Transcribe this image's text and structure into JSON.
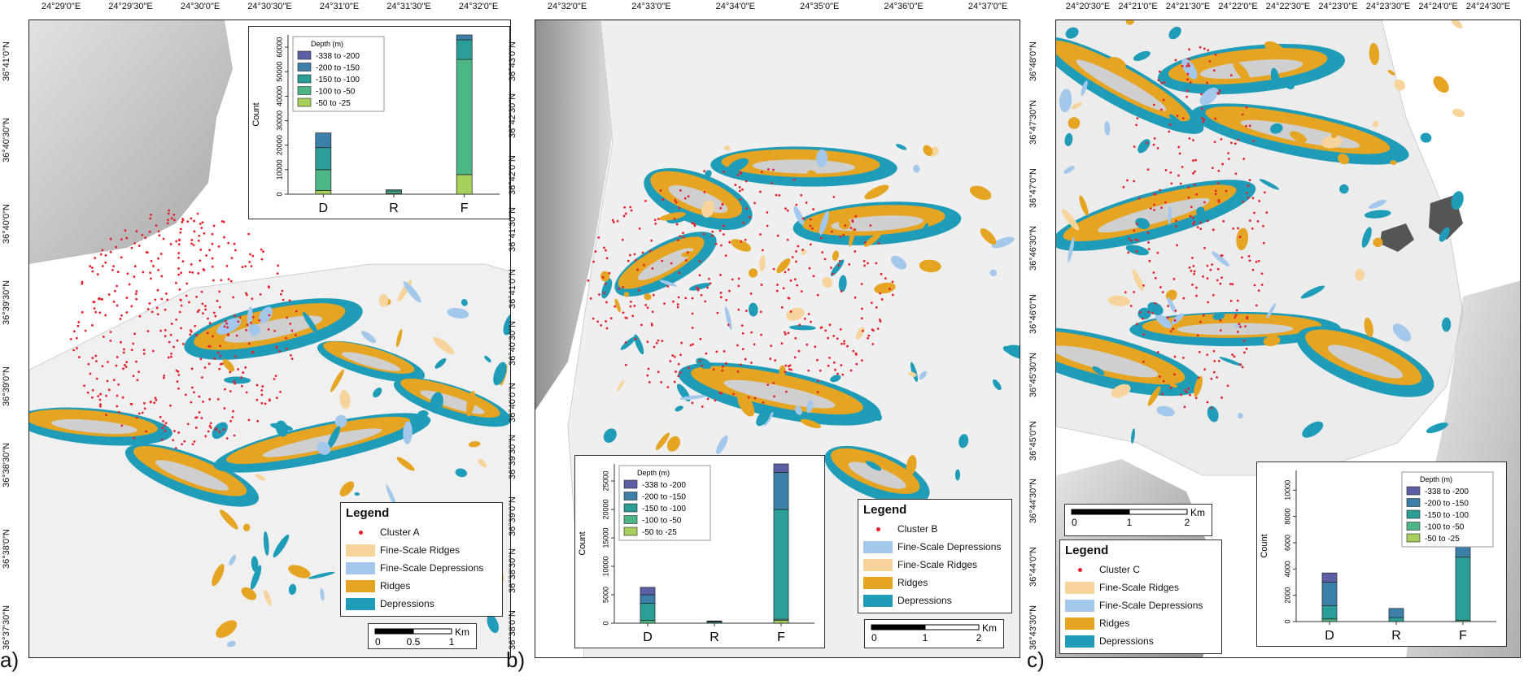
{
  "colors": {
    "depressions": "#1e9cb8",
    "ridges": "#e6a423",
    "fine_depressions": "#a4c8ec",
    "fine_ridges": "#f6d49c",
    "cluster": "#e8202a",
    "depth_bins": [
      "#5c5ea6",
      "#3c7fa8",
      "#2c9e98",
      "#4db685",
      "#a6cf5c"
    ]
  },
  "panels": [
    {
      "letter": "a)",
      "top_coords": [
        "24°29'0\"E",
        "24°29'30\"E",
        "24°30'0\"E",
        "24°30'30\"E",
        "24°31'0\"E",
        "24°31'30\"E",
        "24°32'0\"E"
      ],
      "left_coords": [
        "36°41'0\"N",
        "36°40'30\"N",
        "36°40'0\"N",
        "36°39'30\"N",
        "36°39'0\"N",
        "36°38'30\"N",
        "36°38'0\"N",
        "36°37'30\"N"
      ],
      "legend": {
        "title": "Legend",
        "items": [
          {
            "label": "Cluster A",
            "type": "dot",
            "color": "#e8202a"
          },
          {
            "label": "Fine-Scale Ridges",
            "type": "swatch",
            "color": "#f6d49c"
          },
          {
            "label": "Fine-Scale Depressions",
            "type": "swatch",
            "color": "#a4c8ec"
          },
          {
            "label": "Ridges",
            "type": "swatch",
            "color": "#e6a423"
          },
          {
            "label": "Depressions",
            "type": "swatch",
            "color": "#1e9cb8"
          }
        ]
      },
      "scalebar": {
        "unit": "Km",
        "ticks": [
          "0",
          "0.5",
          "1"
        ]
      }
    },
    {
      "letter": "b)",
      "top_coords": [
        "24°32'0\"E",
        "24°33'0\"E",
        "24°34'0\"E",
        "24°35'0\"E",
        "24°36'0\"E",
        "24°37'0\"E"
      ],
      "left_coords": [
        "36°43'0\"N",
        "36°42'30\"N",
        "36°42'0\"N",
        "36°41'30\"N",
        "36°41'0\"N",
        "36°40'30\"N",
        "36°40'0\"N",
        "36°39'30\"N",
        "36°39'0\"N",
        "36°38'30\"N",
        "36°38'0\"N"
      ],
      "legend": {
        "title": "Legend",
        "items": [
          {
            "label": "Cluster B",
            "type": "dot",
            "color": "#e8202a"
          },
          {
            "label": "Fine-Scale Depressions",
            "type": "swatch",
            "color": "#a4c8ec"
          },
          {
            "label": "Fine-Scale Ridges",
            "type": "swatch",
            "color": "#f6d49c"
          },
          {
            "label": "Ridges",
            "type": "swatch",
            "color": "#e6a423"
          },
          {
            "label": "Depressions",
            "type": "swatch",
            "color": "#1e9cb8"
          }
        ]
      },
      "scalebar": {
        "unit": "Km",
        "ticks": [
          "0",
          "1",
          "2"
        ]
      }
    },
    {
      "letter": "c)",
      "top_coords": [
        "24°20'30\"E",
        "24°21'0\"E",
        "24°21'30\"E",
        "24°22'0\"E",
        "24°22'30\"E",
        "24°23'0\"E",
        "24°23'30\"E",
        "24°24'0\"E",
        "24°24'30\"E"
      ],
      "left_coords": [
        "36°48'0\"N",
        "36°47'30\"N",
        "36°47'0\"N",
        "36°46'30\"N",
        "36°46'0\"N",
        "36°45'30\"N",
        "36°45'0\"N",
        "36°44'30\"N",
        "36°44'0\"N",
        "36°43'30\"N"
      ],
      "legend": {
        "title": "Legend",
        "items": [
          {
            "label": "Cluster C",
            "type": "dot",
            "color": "#e8202a"
          },
          {
            "label": "Fine-Scale Ridges",
            "type": "swatch",
            "color": "#f6d49c"
          },
          {
            "label": "Fine-Scale Depressions",
            "type": "swatch",
            "color": "#a4c8ec"
          },
          {
            "label": "Ridges",
            "type": "swatch",
            "color": "#e6a423"
          },
          {
            "label": "Depressions",
            "type": "swatch",
            "color": "#1e9cb8"
          }
        ]
      },
      "scalebar": {
        "unit": "Km",
        "ticks": [
          "0",
          "1",
          "2"
        ]
      }
    }
  ],
  "chart_data": [
    {
      "type": "bar",
      "stacked": true,
      "panel": "a",
      "categories": [
        "D",
        "R",
        "F"
      ],
      "ylabel": "Count",
      "ylim": [
        0,
        65000
      ],
      "yticks": [
        "0",
        "10000",
        "20000",
        "30000",
        "40000",
        "50000",
        "60000"
      ],
      "legend_title": "Depth (m)",
      "legend_position": "top-left",
      "series": [
        {
          "name": "-50 to -25",
          "values": [
            1500,
            300,
            8000
          ]
        },
        {
          "name": "-100 to -50",
          "values": [
            8500,
            1000,
            47000
          ]
        },
        {
          "name": "-150 to -100",
          "values": [
            9000,
            500,
            8000
          ]
        },
        {
          "name": "-200 to -150",
          "values": [
            6000,
            0,
            2000
          ]
        },
        {
          "name": "-338 to -200",
          "values": [
            0,
            0,
            0
          ]
        }
      ]
    },
    {
      "type": "bar",
      "stacked": true,
      "panel": "b",
      "categories": [
        "D",
        "R",
        "F"
      ],
      "ylabel": "Count",
      "ylim": [
        0,
        28000
      ],
      "yticks": [
        "0",
        "5000",
        "10000",
        "15000",
        "20000",
        "25000"
      ],
      "legend_title": "Depth (m)",
      "legend_position": "top-left",
      "series": [
        {
          "name": "-50 to -25",
          "values": [
            0,
            0,
            500
          ]
        },
        {
          "name": "-100 to -50",
          "values": [
            500,
            0,
            200
          ]
        },
        {
          "name": "-150 to -100",
          "values": [
            3000,
            200,
            19300
          ]
        },
        {
          "name": "-200 to -150",
          "values": [
            1500,
            100,
            6500
          ]
        },
        {
          "name": "-338 to -200",
          "values": [
            1300,
            100,
            1500
          ]
        }
      ]
    },
    {
      "type": "bar",
      "stacked": true,
      "panel": "c",
      "categories": [
        "D",
        "R",
        "F"
      ],
      "ylabel": "Count",
      "ylim": [
        0,
        11500
      ],
      "yticks": [
        "0",
        "2000",
        "4000",
        "6000",
        "8000",
        "10000"
      ],
      "legend_title": "Depth (m)",
      "legend_position": "top-right",
      "series": [
        {
          "name": "-50 to -25",
          "values": [
            0,
            0,
            0
          ]
        },
        {
          "name": "-100 to -50",
          "values": [
            200,
            0,
            100
          ]
        },
        {
          "name": "-150 to -100",
          "values": [
            1000,
            300,
            4800
          ]
        },
        {
          "name": "-200 to -150",
          "values": [
            1800,
            700,
            5200
          ]
        },
        {
          "name": "-338 to -200",
          "values": [
            700,
            0,
            800
          ]
        }
      ]
    }
  ]
}
